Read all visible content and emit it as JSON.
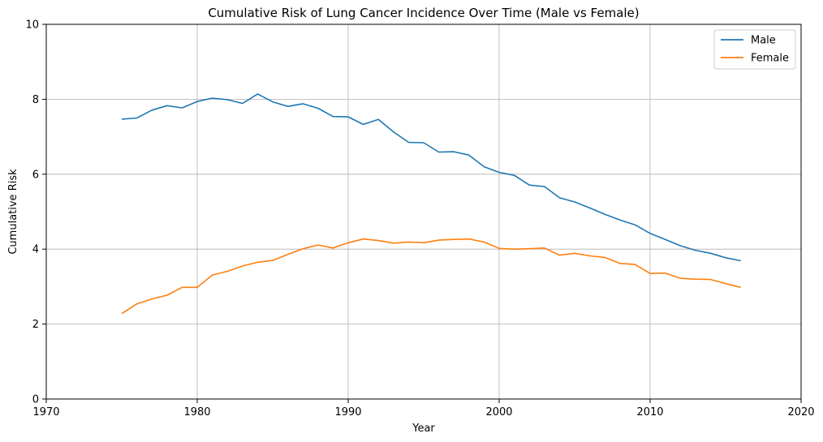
{
  "chart_data": {
    "type": "line",
    "title": "Cumulative Risk of Lung Cancer Incidence Over Time (Male vs Female)",
    "xlabel": "Year",
    "ylabel": "Cumulative Risk",
    "xlim": [
      1970,
      2020
    ],
    "ylim": [
      0,
      10
    ],
    "xticks": [
      "1970",
      "1980",
      "1990",
      "2000",
      "2010",
      "2020"
    ],
    "yticks": [
      "0",
      "2",
      "4",
      "6",
      "8",
      "10"
    ],
    "grid": true,
    "legend_position": "top-right",
    "x": [
      1975,
      1976,
      1977,
      1978,
      1979,
      1980,
      1981,
      1982,
      1983,
      1984,
      1985,
      1986,
      1987,
      1988,
      1989,
      1990,
      1991,
      1992,
      1993,
      1994,
      1995,
      1996,
      1997,
      1998,
      1999,
      2000,
      2001,
      2002,
      2003,
      2004,
      2005,
      2006,
      2007,
      2008,
      2009,
      2010,
      2011,
      2012,
      2013,
      2014,
      2015,
      2016
    ],
    "series": [
      {
        "name": "Male",
        "color": "#1f77b4",
        "values": [
          7.47,
          7.5,
          7.71,
          7.83,
          7.77,
          7.94,
          8.03,
          7.99,
          7.89,
          8.14,
          7.93,
          7.81,
          7.88,
          7.76,
          7.54,
          7.53,
          7.33,
          7.46,
          7.13,
          6.85,
          6.84,
          6.59,
          6.6,
          6.51,
          6.2,
          6.05,
          5.97,
          5.71,
          5.67,
          5.37,
          5.26,
          5.1,
          4.93,
          4.78,
          4.65,
          4.42,
          4.26,
          4.09,
          3.97,
          3.89,
          3.77,
          3.69
        ]
      },
      {
        "name": "Female",
        "color": "#ff7f0e",
        "values": [
          2.28,
          2.54,
          2.67,
          2.77,
          2.98,
          2.98,
          3.31,
          3.41,
          3.55,
          3.65,
          3.7,
          3.86,
          4.01,
          4.11,
          4.03,
          4.17,
          4.27,
          4.23,
          4.16,
          4.19,
          4.17,
          4.24,
          4.26,
          4.27,
          4.19,
          4.02,
          4.0,
          4.01,
          4.03,
          3.84,
          3.89,
          3.82,
          3.78,
          3.62,
          3.59,
          3.35,
          3.36,
          3.22,
          3.2,
          3.19,
          3.08,
          2.98
        ]
      }
    ]
  }
}
